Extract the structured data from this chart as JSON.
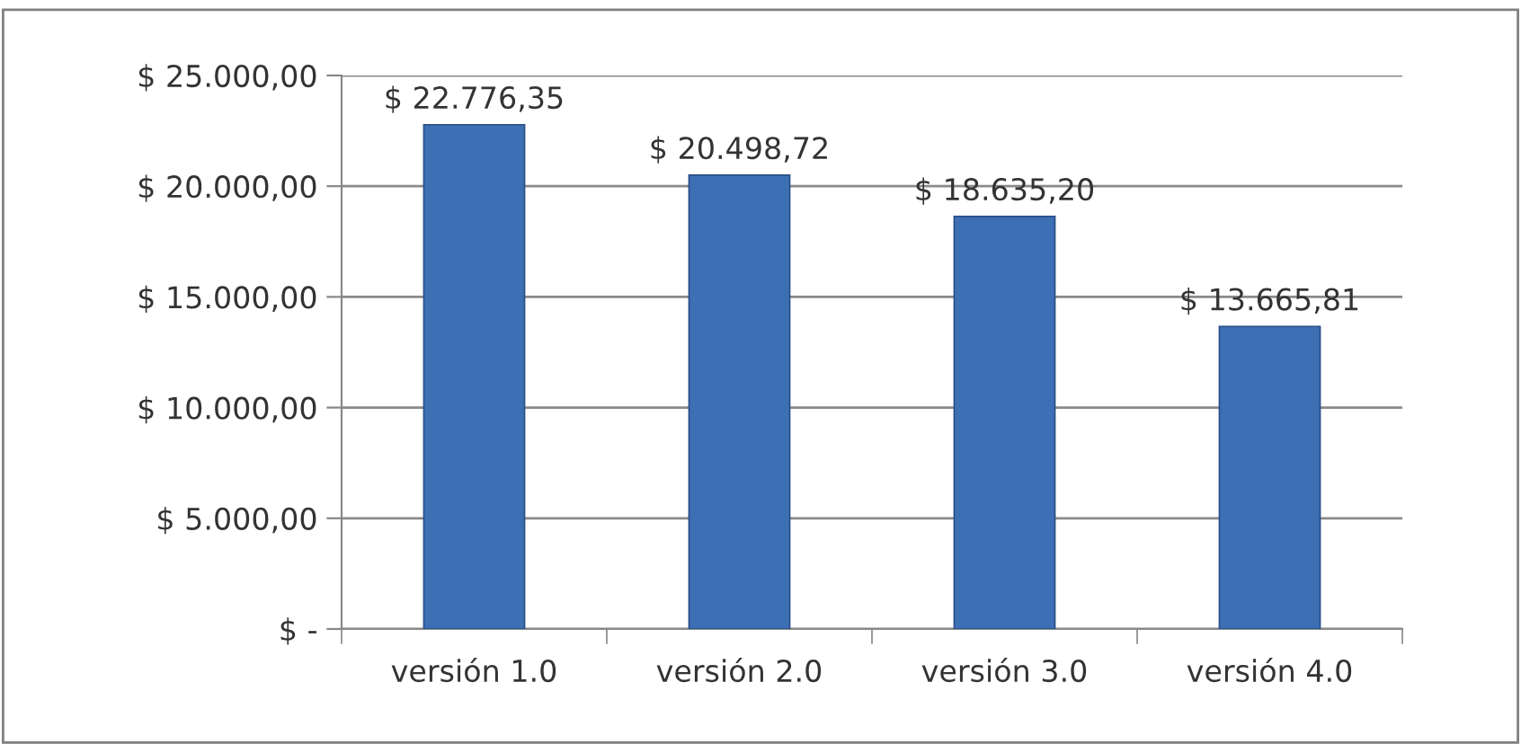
{
  "chart_data": {
    "type": "bar",
    "categories": [
      "versión 1.0",
      "versión 2.0",
      "versión 3.0",
      "versión 4.0"
    ],
    "values": [
      22776.35,
      20498.72,
      18635.2,
      13665.81
    ],
    "value_labels": [
      "$ 22.776,35",
      "$ 20.498,72",
      "$ 18.635,20",
      "$ 13.665,81"
    ],
    "color": "#3d6fb4",
    "ylim": [
      0,
      25000
    ],
    "yticks": [
      {
        "value": 0,
        "label": "$ -"
      },
      {
        "value": 5000,
        "label": "$ 5.000,00"
      },
      {
        "value": 10000,
        "label": "$ 10.000,00"
      },
      {
        "value": 15000,
        "label": "$ 15.000,00"
      },
      {
        "value": 20000,
        "label": "$ 20.000,00"
      },
      {
        "value": 25000,
        "label": "$ 25.000,00"
      }
    ],
    "grid": "y",
    "legend": false
  }
}
